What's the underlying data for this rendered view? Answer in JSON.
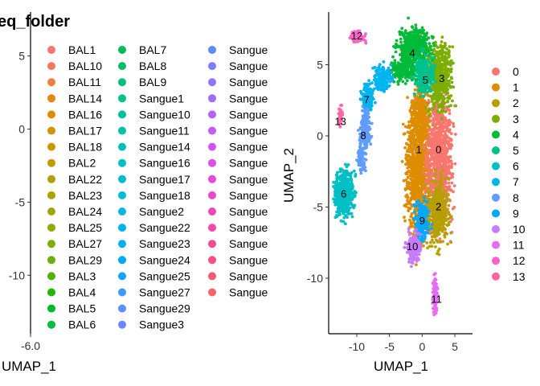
{
  "chart_data": [
    {
      "type": "scatter",
      "title": "eq_folder",
      "xlabel": "UMAP_1",
      "ylabel": "",
      "xlim": [
        -6.2,
        -5.8
      ],
      "ylim": [
        -14,
        8
      ],
      "x_ticks": [
        -6.0
      ],
      "x_tick_labels": [
        "-6.0"
      ],
      "y_ticks": [
        5,
        0,
        -5,
        -10
      ],
      "y_tick_labels": [
        "5",
        "0",
        "-5",
        "-10"
      ],
      "legend_position": "right",
      "legend": [
        {
          "name": "BAL1",
          "color": "#F8766D"
        },
        {
          "name": "BAL10",
          "color": "#F37B59"
        },
        {
          "name": "BAL11",
          "color": "#ED8141"
        },
        {
          "name": "BAL14",
          "color": "#E68613"
        },
        {
          "name": "BAL16",
          "color": "#DE8C00"
        },
        {
          "name": "BAL17",
          "color": "#D59100"
        },
        {
          "name": "BAL18",
          "color": "#CB9600"
        },
        {
          "name": "BAL2",
          "color": "#C19A00"
        },
        {
          "name": "BAL22",
          "color": "#B59F00"
        },
        {
          "name": "BAL23",
          "color": "#A9A300"
        },
        {
          "name": "BAL24",
          "color": "#9CA700"
        },
        {
          "name": "BAL25",
          "color": "#8EAB00"
        },
        {
          "name": "BAL27",
          "color": "#7CAE00"
        },
        {
          "name": "BAL29",
          "color": "#68B100"
        },
        {
          "name": "BAL3",
          "color": "#4EB400"
        },
        {
          "name": "BAL4",
          "color": "#1FB700"
        },
        {
          "name": "BAL5",
          "color": "#00B92A"
        },
        {
          "name": "BAL6",
          "color": "#00BB45"
        },
        {
          "name": "BAL7",
          "color": "#00BC59"
        },
        {
          "name": "BAL8",
          "color": "#00BE6B"
        },
        {
          "name": "BAL9",
          "color": "#00BF7C"
        },
        {
          "name": "Sangue1",
          "color": "#00C08B"
        },
        {
          "name": "Sangue10",
          "color": "#00C19A"
        },
        {
          "name": "Sangue11",
          "color": "#00C1A7"
        },
        {
          "name": "Sangue14",
          "color": "#00C0B4"
        },
        {
          "name": "Sangue16",
          "color": "#00BFC0"
        },
        {
          "name": "Sangue17",
          "color": "#00BDCB"
        },
        {
          "name": "Sangue18",
          "color": "#00BBD6"
        },
        {
          "name": "Sangue2",
          "color": "#00B8E0"
        },
        {
          "name": "Sangue22",
          "color": "#00B4EA"
        },
        {
          "name": "Sangue23",
          "color": "#00AFF3"
        },
        {
          "name": "Sangue24",
          "color": "#00A9FC"
        },
        {
          "name": "Sangue25",
          "color": "#14A2FF"
        },
        {
          "name": "Sangue27",
          "color": "#3F9AFF"
        },
        {
          "name": "Sangue29",
          "color": "#5A91FF"
        },
        {
          "name": "Sangue3",
          "color": "#7086FF"
        },
        {
          "name": "Sangue",
          "color": "#5C8CFF"
        },
        {
          "name": "Sangue",
          "color": "#7B7FFF"
        },
        {
          "name": "Sangue",
          "color": "#8F76FF"
        },
        {
          "name": "Sangue",
          "color": "#A36CFF"
        },
        {
          "name": "Sangue",
          "color": "#B562FF"
        },
        {
          "name": "Sangue",
          "color": "#C55AFF"
        },
        {
          "name": "Sangue",
          "color": "#D153F6"
        },
        {
          "name": "Sangue",
          "color": "#DB4EEA"
        },
        {
          "name": "Sangue",
          "color": "#E44ADC"
        },
        {
          "name": "Sangue",
          "color": "#EB47CC"
        },
        {
          "name": "Sangue",
          "color": "#F046BB"
        },
        {
          "name": "Sangue",
          "color": "#F447A9"
        },
        {
          "name": "Sangue",
          "color": "#F74A96"
        },
        {
          "name": "Sangue",
          "color": "#F85083"
        },
        {
          "name": "Sangue",
          "color": "#F95A72"
        },
        {
          "name": "Sangue",
          "color": "#F8636A"
        }
      ]
    },
    {
      "type": "scatter",
      "title": "",
      "xlabel": "UMAP_1",
      "ylabel": "UMAP_2",
      "xlim": [
        -14.3,
        7.7
      ],
      "ylim": [
        -13.9,
        8.7
      ],
      "x_ticks": [
        -10,
        -5,
        0,
        5
      ],
      "x_tick_labels": [
        "-10",
        "-5",
        "0",
        "5"
      ],
      "y_ticks": [
        5,
        0,
        -5,
        -10
      ],
      "y_tick_labels": [
        "5",
        "0",
        "-5",
        "-10"
      ],
      "legend_position": "right",
      "clusters": [
        {
          "name": "0",
          "color": "#F8766D",
          "center": [
            2.5,
            -1.0
          ]
        },
        {
          "name": "1",
          "color": "#DE8C00",
          "center": [
            -0.5,
            -1.0
          ]
        },
        {
          "name": "2",
          "color": "#B79F00",
          "center": [
            2.5,
            -5.0
          ]
        },
        {
          "name": "3",
          "color": "#7CAE00",
          "center": [
            3.0,
            4.0
          ]
        },
        {
          "name": "4",
          "color": "#00BA38",
          "center": [
            -1.5,
            5.8
          ]
        },
        {
          "name": "5",
          "color": "#00C08B",
          "center": [
            0.5,
            3.9
          ]
        },
        {
          "name": "6",
          "color": "#00BFC4",
          "center": [
            -12.0,
            -4.1
          ]
        },
        {
          "name": "7",
          "color": "#00B4F0",
          "center": [
            -8.5,
            2.5
          ]
        },
        {
          "name": "8",
          "color": "#619CFF",
          "center": [
            -9.0,
            0.0
          ]
        },
        {
          "name": "9",
          "color": "#00A9FF",
          "center": [
            0.0,
            -6.0
          ]
        },
        {
          "name": "10",
          "color": "#C77CFF",
          "center": [
            -1.5,
            -7.8
          ]
        },
        {
          "name": "11",
          "color": "#E76BF3",
          "center": [
            2.2,
            -11.5
          ]
        },
        {
          "name": "12",
          "color": "#FF61CC",
          "center": [
            -10.0,
            7.0
          ]
        },
        {
          "name": "13",
          "color": "#FF67A4",
          "center": [
            -12.5,
            1.0
          ]
        }
      ]
    }
  ]
}
